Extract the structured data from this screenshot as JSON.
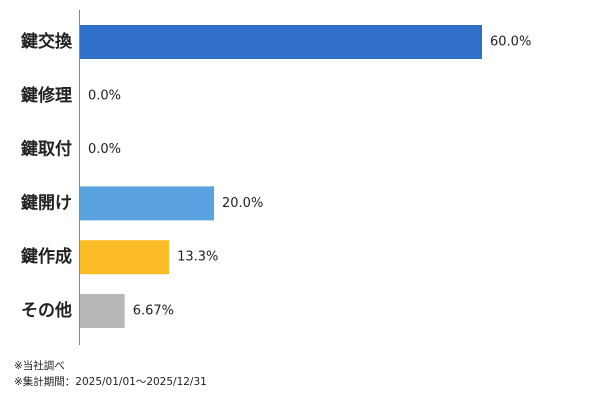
{
  "chart_data": {
    "type": "hbar",
    "categories": [
      "鍵交換",
      "鍵修理",
      "鍵取付",
      "鍵開け",
      "鍵作成",
      "その他"
    ],
    "values": [
      60,
      0,
      0,
      20,
      13.3,
      6.67
    ],
    "value_labels": [
      "60.0%",
      "0.0%",
      "0.0%",
      "20.0%",
      "13.3%",
      "6.67%"
    ],
    "colors": [
      "#2f6fc9",
      "#2f6fc9",
      "#2f6fc9",
      "#5ba3e0",
      "#fbbb25",
      "#b8b8b8"
    ],
    "xlim": [
      0,
      60
    ],
    "notes": [
      "※当社調べ",
      "※集計期間：2025/01/01〜2025/12/31"
    ]
  }
}
